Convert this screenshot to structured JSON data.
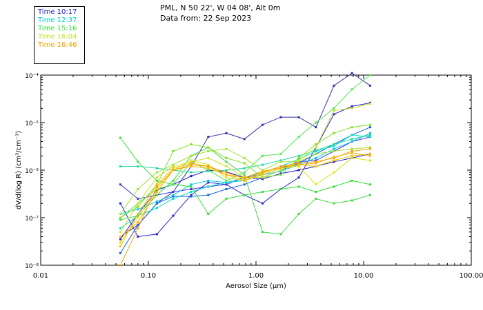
{
  "header": {
    "line1": "PML, N 50 22', W 04 08', Alt 0m",
    "line2": "Data from: 22 Sep 2023"
  },
  "legend": [
    {
      "label": "Time 10:17",
      "color": "#1a1acc"
    },
    {
      "label": "Time 12:37",
      "color": "#00d0d0"
    },
    {
      "label": "Time 15:16",
      "color": "#30e030"
    },
    {
      "label": "Time 16:04",
      "color": "#c8e020"
    },
    {
      "label": "Time 16:46",
      "color": "#f0a000"
    }
  ],
  "chart_data": {
    "type": "line",
    "xlabel": "Aerosol Size (µm)",
    "ylabel": "dV/d(log R) (cm³/cm⁻³)",
    "x_scale": "log",
    "y_scale": "log",
    "xlim": [
      0.01,
      100
    ],
    "ylim": [
      1e-08,
      0.0001
    ],
    "x_tick_labels": [
      {
        "value": 0.01,
        "label": "0.01"
      },
      {
        "value": 0.1,
        "label": "0.10"
      },
      {
        "value": 1,
        "label": "1.00"
      },
      {
        "value": 10,
        "label": "10.00"
      },
      {
        "value": 100,
        "label": "100.00"
      }
    ],
    "y_tick_labels": [
      {
        "value": 1e-08,
        "label": "10⁻⁸"
      },
      {
        "value": 1e-07,
        "label": "10⁻⁷"
      },
      {
        "value": 1e-06,
        "label": "10⁻⁶"
      },
      {
        "value": 1e-05,
        "label": "10⁻⁵"
      },
      {
        "value": 0.0001,
        "label": "10⁻⁴"
      }
    ],
    "x": [
      0.055,
      0.08,
      0.12,
      0.17,
      0.25,
      0.36,
      0.53,
      0.78,
      1.15,
      1.7,
      2.5,
      3.6,
      5.3,
      7.8,
      11.5
    ],
    "series": [
      {
        "color": "#1a1acc",
        "values": [
          3.5e-08,
          1.2e-07,
          3.8e-07,
          5e-07,
          7.5e-07,
          1e-06,
          9.2e-07,
          7e-07,
          6.5e-07,
          8.5e-07,
          1e-06,
          1.2e-06,
          1.5e-06,
          1.8e-06,
          2.2e-06
        ]
      },
      {
        "color": "#2020d0",
        "values": [
          2e-07,
          4e-08,
          4.5e-08,
          1.1e-07,
          3e-07,
          5.5e-07,
          5e-07,
          3e-07,
          2e-07,
          4e-07,
          7e-07,
          3e-06,
          1.5e-05,
          2.2e-05,
          2.6e-05
        ]
      },
      {
        "color": "#3030a8",
        "values": [
          4e-08,
          7e-08,
          2e-07,
          3.5e-07,
          1.2e-06,
          5e-06,
          6e-06,
          4.5e-06,
          9e-06,
          1.3e-05,
          1.3e-05,
          8e-06,
          6e-05,
          0.00011,
          6e-05
        ]
      },
      {
        "color": "#4030e0",
        "values": [
          5e-07,
          2.5e-07,
          3e-07,
          3.5e-07,
          4e-07,
          4.5e-07,
          5e-07,
          7e-07,
          8e-07,
          1.1e-06,
          1.5e-06,
          1.6e-06,
          2.5e-06,
          4e-06,
          5e-06
        ]
      },
      {
        "color": "#1060e0",
        "values": [
          1.8e-08,
          7e-08,
          2e-07,
          2.8e-07,
          2.8e-07,
          3e-07,
          4e-07,
          5e-07,
          7e-07,
          1e-06,
          1.4e-06,
          2.2e-06,
          3.5e-06,
          5.5e-06,
          8e-06
        ]
      },
      {
        "color": "#00c8e8",
        "values": [
          1.2e-07,
          1.5e-07,
          2.2e-07,
          3e-07,
          5e-07,
          6e-07,
          5.5e-07,
          6e-07,
          8e-07,
          9.5e-07,
          1.3e-06,
          1.8e-06,
          2.8e-06,
          4e-06,
          6e-06
        ]
      },
      {
        "color": "#00e0c8",
        "values": [
          6e-08,
          1.1e-07,
          1.6e-07,
          2.5e-07,
          3.5e-07,
          4.5e-07,
          5.5e-07,
          7e-07,
          9e-07,
          1.2e-06,
          1.7e-06,
          2.5e-06,
          3.2e-06,
          5.5e-06,
          5e-06
        ]
      },
      {
        "color": "#20d8a0",
        "values": [
          1.2e-06,
          1.2e-06,
          1.1e-06,
          1e-06,
          9e-07,
          9.5e-07,
          1e-06,
          1.1e-06,
          1.3e-06,
          1.6e-06,
          2e-06,
          2.6e-06,
          3.5e-06,
          4.5e-06,
          5.5e-06
        ]
      },
      {
        "color": "#30e030",
        "values": [
          4.8e-06,
          1.5e-06,
          6e-07,
          5e-07,
          4.5e-07,
          1.2e-07,
          2.5e-07,
          3e-07,
          3.5e-07,
          4e-07,
          4.5e-07,
          3.5e-07,
          4.5e-07,
          6e-07,
          5e-07
        ]
      },
      {
        "color": "#40d840",
        "values": [
          9e-08,
          1.1e-07,
          3e-07,
          6e-07,
          2e-06,
          3e-06,
          1.5e-06,
          8e-07,
          5e-08,
          4.5e-08,
          1.2e-07,
          2.5e-07,
          2e-07,
          2.3e-07,
          3e-07
        ]
      },
      {
        "color": "#50e850",
        "values": [
          1e-07,
          2e-07,
          4e-07,
          5e-07,
          1.5e-06,
          1e-06,
          6e-07,
          9e-07,
          2e-06,
          2.2e-06,
          5e-06,
          1e-05,
          2e-05,
          5e-05,
          0.0001
        ]
      },
      {
        "color": "#7ee020",
        "values": [
          1e-07,
          1.7e-07,
          5e-07,
          2.5e-06,
          3.5e-06,
          3e-06,
          1.8e-06,
          1.4e-06,
          7e-07,
          8e-07,
          1.8e-06,
          3.5e-06,
          6e-06,
          8e-06,
          9e-06
        ]
      },
      {
        "color": "#a0e030",
        "values": [
          1.2e-07,
          4e-07,
          9e-07,
          1.3e-06,
          2e-06,
          2.5e-06,
          2.8e-06,
          1.8e-06,
          1e-06,
          1.5e-06,
          1.5e-06,
          2.2e-06,
          2.5e-06,
          2.8e-06,
          3e-06
        ]
      },
      {
        "color": "#c8e020",
        "values": [
          5e-08,
          2e-07,
          7e-07,
          1.2e-06,
          1.5e-06,
          1.8e-06,
          1.2e-06,
          7e-07,
          7e-07,
          1e-06,
          1.6e-06,
          3e-06,
          1.8e-05,
          2e-05,
          2.5e-05
        ]
      },
      {
        "color": "#e0e010",
        "values": [
          3e-08,
          1e-07,
          4e-07,
          1e-06,
          1.6e-06,
          1.3e-06,
          7e-07,
          6e-07,
          8e-07,
          1.1e-06,
          1.2e-06,
          5e-07,
          9e-07,
          1.8e-06,
          1.6e-06
        ]
      },
      {
        "color": "#f8c000",
        "values": [
          2.5e-08,
          1.2e-07,
          5e-07,
          1.1e-06,
          1.4e-06,
          1.2e-06,
          8e-07,
          6e-07,
          8.5e-07,
          1.2e-06,
          1.3e-06,
          1.2e-06,
          1.6e-06,
          2e-06,
          2.2e-06
        ]
      },
      {
        "color": "#f0a000",
        "values": [
          1e-08,
          6e-08,
          4.5e-07,
          1e-06,
          1.3e-06,
          1.2e-06,
          9e-07,
          6.5e-07,
          9e-07,
          1.2e-06,
          1.4e-06,
          1.5e-06,
          1.8e-06,
          2.5e-06,
          2.8e-06
        ]
      },
      {
        "color": "#ffb000",
        "values": [
          4e-08,
          8e-08,
          3.5e-07,
          1e-06,
          1.2e-06,
          1.1e-06,
          8e-07,
          7e-07,
          9.5e-07,
          1.1e-06,
          1.3e-06,
          1.4e-06,
          1.9e-06,
          2.3e-06,
          2e-06
        ]
      }
    ]
  }
}
